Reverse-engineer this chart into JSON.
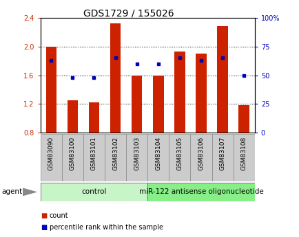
{
  "title": "GDS1729 / 155026",
  "samples": [
    "GSM83090",
    "GSM83100",
    "GSM83101",
    "GSM83102",
    "GSM83103",
    "GSM83104",
    "GSM83105",
    "GSM83106",
    "GSM83107",
    "GSM83108"
  ],
  "count_values": [
    2.0,
    1.25,
    1.22,
    2.32,
    1.6,
    1.6,
    1.93,
    1.9,
    2.28,
    1.18
  ],
  "percentile_values": [
    63,
    48,
    48,
    65,
    60,
    60,
    65,
    63,
    65,
    50
  ],
  "ylim_left": [
    0.8,
    2.4
  ],
  "ylim_right": [
    0,
    100
  ],
  "yticks_left": [
    0.8,
    1.2,
    1.6,
    2.0,
    2.4
  ],
  "yticks_right": [
    0,
    25,
    50,
    75,
    100
  ],
  "bar_color": "#cc2200",
  "dot_color": "#0000bb",
  "background_color": "#ffffff",
  "agent_groups": [
    {
      "label": "control",
      "start": 0,
      "end": 4,
      "color": "#c8f5c8"
    },
    {
      "label": "miR-122 antisense oligonucleotide",
      "start": 5,
      "end": 9,
      "color": "#88ee88"
    }
  ],
  "sample_label_color": "#cccccc",
  "legend_items": [
    {
      "label": "count",
      "color": "#cc2200"
    },
    {
      "label": "percentile rank within the sample",
      "color": "#0000bb"
    }
  ],
  "agent_label": "agent",
  "title_fontsize": 10,
  "tick_fontsize": 7,
  "bar_width": 0.5
}
